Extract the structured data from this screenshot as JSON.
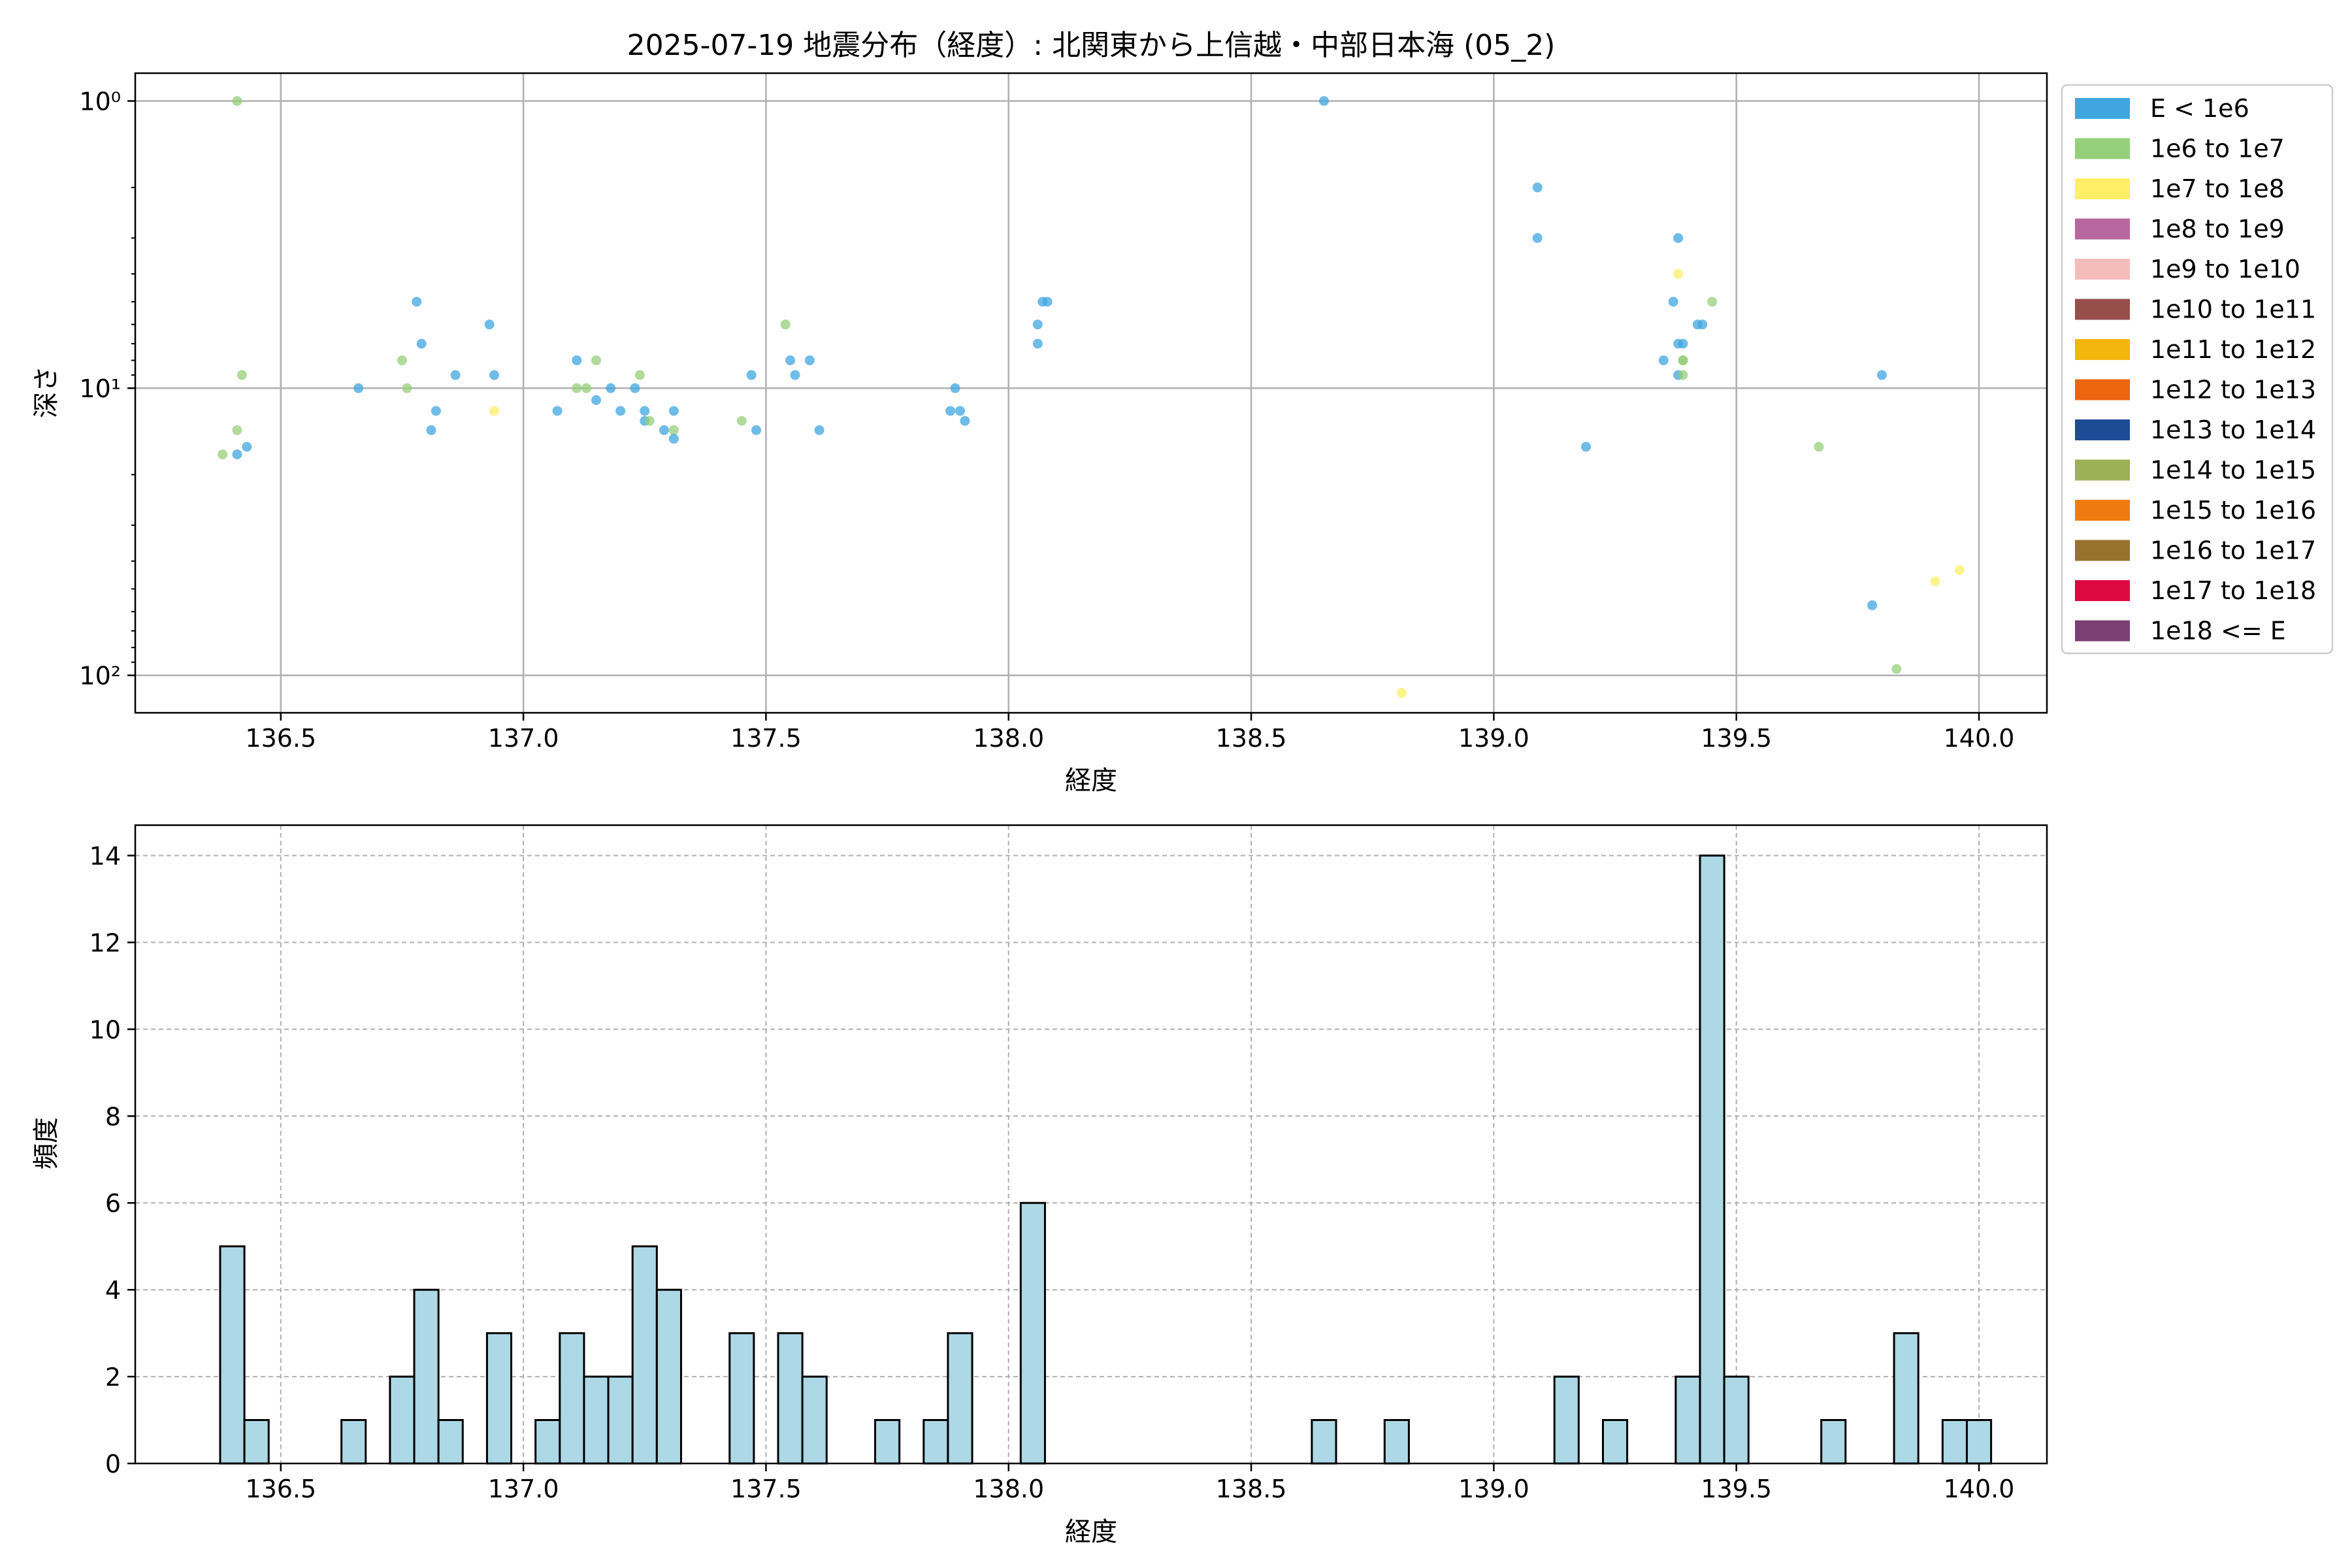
{
  "figure": {
    "title": "2025-07-19 地震分布（経度）: 北関東から上信越・中部日本海 (05_2)"
  },
  "chart_data": [
    {
      "type": "scatter",
      "xlabel": "経度",
      "ylabel": "深さ",
      "xlim": [
        136.2,
        140.14
      ],
      "ylim": [
        135,
        0.8
      ],
      "yscale": "log",
      "y_inverted": true,
      "grid": true,
      "x_ticks": [
        136.5,
        137.0,
        137.5,
        138.0,
        138.5,
        139.0,
        139.5,
        140.0
      ],
      "x_tick_labels": [
        "136.5",
        "137.0",
        "137.5",
        "138.0",
        "138.5",
        "139.0",
        "139.5",
        "140.0"
      ],
      "y_ticks": [
        1,
        10,
        100
      ],
      "y_tick_labels": [
        "10⁰",
        "10¹",
        "10²"
      ],
      "legend_position": "outside-right",
      "legend": [
        {
          "label": "E < 1e6",
          "color": "#3fa6e0"
        },
        {
          "label": "1e6 to 1e7",
          "color": "#96cf7a"
        },
        {
          "label": "1e7 to 1e8",
          "color": "#ffef66"
        },
        {
          "label": "1e8 to 1e9",
          "color": "#b9679f"
        },
        {
          "label": "1e9 to 1e10",
          "color": "#f5bdba"
        },
        {
          "label": "1e10 to 1e11",
          "color": "#964f4b"
        },
        {
          "label": "1e11 to 1e12",
          "color": "#f3b60e"
        },
        {
          "label": "1e12 to 1e13",
          "color": "#ec650f"
        },
        {
          "label": "1e13 to 1e14",
          "color": "#1d4c94"
        },
        {
          "label": "1e14 to 1e15",
          "color": "#9cb055"
        },
        {
          "label": "1e15 to 1e16",
          "color": "#ef7b10"
        },
        {
          "label": "1e16 to 1e17",
          "color": "#98712f"
        },
        {
          "label": "1e17 to 1e18",
          "color": "#dd0941"
        },
        {
          "label": "1e18 <= E",
          "color": "#7c3f73"
        }
      ],
      "points": [
        {
          "x": 136.38,
          "y": 17,
          "c": 1
        },
        {
          "x": 136.41,
          "y": 1,
          "c": 1
        },
        {
          "x": 136.42,
          "y": 9,
          "c": 1
        },
        {
          "x": 136.41,
          "y": 14,
          "c": 1
        },
        {
          "x": 136.41,
          "y": 17,
          "c": 0
        },
        {
          "x": 136.43,
          "y": 16,
          "c": 0
        },
        {
          "x": 136.66,
          "y": 10,
          "c": 0
        },
        {
          "x": 136.75,
          "y": 8,
          "c": 1
        },
        {
          "x": 136.76,
          "y": 10,
          "c": 1
        },
        {
          "x": 136.78,
          "y": 5,
          "c": 0
        },
        {
          "x": 136.79,
          "y": 7,
          "c": 0
        },
        {
          "x": 136.81,
          "y": 14,
          "c": 0
        },
        {
          "x": 136.82,
          "y": 12,
          "c": 0
        },
        {
          "x": 136.86,
          "y": 9,
          "c": 0
        },
        {
          "x": 136.93,
          "y": 6,
          "c": 0
        },
        {
          "x": 136.94,
          "y": 9,
          "c": 0
        },
        {
          "x": 136.94,
          "y": 12,
          "c": 2
        },
        {
          "x": 137.07,
          "y": 12,
          "c": 0
        },
        {
          "x": 137.11,
          "y": 8,
          "c": 0
        },
        {
          "x": 137.11,
          "y": 10,
          "c": 1
        },
        {
          "x": 137.13,
          "y": 10,
          "c": 1
        },
        {
          "x": 137.15,
          "y": 8,
          "c": 1
        },
        {
          "x": 137.15,
          "y": 11,
          "c": 0
        },
        {
          "x": 137.18,
          "y": 10,
          "c": 0
        },
        {
          "x": 137.2,
          "y": 12,
          "c": 0
        },
        {
          "x": 137.23,
          "y": 10,
          "c": 0
        },
        {
          "x": 137.24,
          "y": 9,
          "c": 1
        },
        {
          "x": 137.25,
          "y": 12,
          "c": 0
        },
        {
          "x": 137.25,
          "y": 13,
          "c": 0
        },
        {
          "x": 137.26,
          "y": 13,
          "c": 1
        },
        {
          "x": 137.29,
          "y": 14,
          "c": 0
        },
        {
          "x": 137.31,
          "y": 12,
          "c": 0
        },
        {
          "x": 137.31,
          "y": 14,
          "c": 1
        },
        {
          "x": 137.31,
          "y": 15,
          "c": 0
        },
        {
          "x": 137.45,
          "y": 13,
          "c": 1
        },
        {
          "x": 137.47,
          "y": 9,
          "c": 0
        },
        {
          "x": 137.48,
          "y": 14,
          "c": 0
        },
        {
          "x": 137.54,
          "y": 6,
          "c": 1
        },
        {
          "x": 137.55,
          "y": 8,
          "c": 0
        },
        {
          "x": 137.56,
          "y": 9,
          "c": 0
        },
        {
          "x": 137.59,
          "y": 8,
          "c": 0
        },
        {
          "x": 137.61,
          "y": 14,
          "c": 0
        },
        {
          "x": 137.88,
          "y": 12,
          "c": 0
        },
        {
          "x": 137.89,
          "y": 10,
          "c": 0
        },
        {
          "x": 137.9,
          "y": 12,
          "c": 0
        },
        {
          "x": 137.91,
          "y": 13,
          "c": 0
        },
        {
          "x": 138.06,
          "y": 6,
          "c": 0
        },
        {
          "x": 138.06,
          "y": 7,
          "c": 0
        },
        {
          "x": 138.07,
          "y": 5,
          "c": 0
        },
        {
          "x": 138.08,
          "y": 5,
          "c": 0
        },
        {
          "x": 138.65,
          "y": 1,
          "c": 0
        },
        {
          "x": 138.81,
          "y": 115,
          "c": 2
        },
        {
          "x": 139.09,
          "y": 2,
          "c": 0
        },
        {
          "x": 139.09,
          "y": 3,
          "c": 0
        },
        {
          "x": 139.19,
          "y": 16,
          "c": 0
        },
        {
          "x": 139.35,
          "y": 8,
          "c": 0
        },
        {
          "x": 139.37,
          "y": 5,
          "c": 0
        },
        {
          "x": 139.38,
          "y": 3,
          "c": 0
        },
        {
          "x": 139.38,
          "y": 4,
          "c": 2
        },
        {
          "x": 139.38,
          "y": 7,
          "c": 0
        },
        {
          "x": 139.38,
          "y": 9,
          "c": 0
        },
        {
          "x": 139.39,
          "y": 7,
          "c": 0
        },
        {
          "x": 139.39,
          "y": 8,
          "c": 1
        },
        {
          "x": 139.39,
          "y": 8,
          "c": 1
        },
        {
          "x": 139.39,
          "y": 9,
          "c": 1
        },
        {
          "x": 139.42,
          "y": 6,
          "c": 0
        },
        {
          "x": 139.43,
          "y": 6,
          "c": 0
        },
        {
          "x": 139.45,
          "y": 5,
          "c": 1
        },
        {
          "x": 139.67,
          "y": 16,
          "c": 1
        },
        {
          "x": 139.78,
          "y": 57,
          "c": 0
        },
        {
          "x": 139.8,
          "y": 9,
          "c": 0
        },
        {
          "x": 139.83,
          "y": 95,
          "c": 1
        },
        {
          "x": 139.91,
          "y": 47,
          "c": 2
        },
        {
          "x": 139.96,
          "y": 43,
          "c": 2
        }
      ]
    },
    {
      "type": "bar",
      "subtype": "histogram",
      "xlabel": "経度",
      "ylabel": "頻度",
      "xlim": [
        136.2,
        140.14
      ],
      "ylim": [
        0,
        14.7
      ],
      "grid": true,
      "bar_color": "#add8e6",
      "edge_color": "#000000",
      "x_ticks": [
        136.5,
        137.0,
        137.5,
        138.0,
        138.5,
        139.0,
        139.5,
        140.0
      ],
      "x_tick_labels": [
        "136.5",
        "137.0",
        "137.5",
        "138.0",
        "138.5",
        "139.0",
        "139.5",
        "140.0"
      ],
      "y_ticks": [
        0,
        2,
        4,
        6,
        8,
        10,
        12,
        14
      ],
      "y_tick_labels": [
        "0",
        "2",
        "4",
        "6",
        "8",
        "10",
        "12",
        "14"
      ],
      "bin_start": 136.375,
      "bin_width": 0.05,
      "values": [
        5,
        1,
        0,
        0,
        0,
        1,
        0,
        2,
        4,
        1,
        0,
        3,
        0,
        1,
        3,
        2,
        2,
        5,
        4,
        0,
        0,
        3,
        0,
        3,
        2,
        0,
        0,
        1,
        0,
        1,
        3,
        0,
        0,
        6,
        0,
        0,
        0,
        0,
        0,
        0,
        0,
        0,
        0,
        0,
        0,
        1,
        0,
        0,
        1,
        0,
        0,
        0,
        0,
        0,
        0,
        2,
        0,
        1,
        0,
        0,
        2,
        14,
        2,
        0,
        0,
        0,
        1,
        0,
        0,
        3,
        0,
        1,
        1
      ]
    }
  ]
}
